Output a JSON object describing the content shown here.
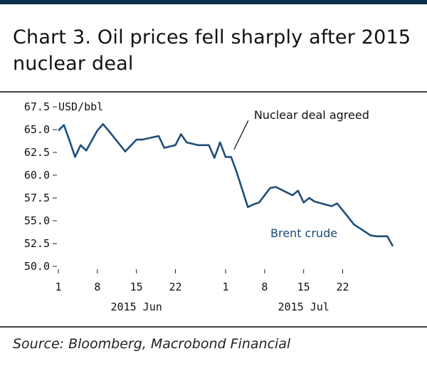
{
  "title": "Chart 3. Oil prices fell sharply after 2015 nuclear deal",
  "source": "Source: Bloomberg, Macrobond Financial",
  "colors": {
    "header_bar": "#0b2d4a",
    "series": "#1f4e79",
    "label": "#1a4a7a"
  },
  "chart_data": {
    "type": "line",
    "ylabel": "USD/bbl",
    "ylim": [
      50.0,
      67.5
    ],
    "yticks": [
      "67.5",
      "65.0",
      "62.5",
      "60.0",
      "57.5",
      "55.0",
      "52.5",
      "50.0"
    ],
    "ytick_values": [
      67.5,
      65.0,
      62.5,
      60.0,
      57.5,
      55.0,
      52.5,
      50.0
    ],
    "x_range": [
      "2015-06-01",
      "2015-07-31"
    ],
    "xticks": [
      {
        "date": "2015-06-01",
        "label": "1"
      },
      {
        "date": "2015-06-08",
        "label": "8"
      },
      {
        "date": "2015-06-15",
        "label": "15"
      },
      {
        "date": "2015-06-22",
        "label": "22"
      },
      {
        "date": "2015-07-01",
        "label": "1"
      },
      {
        "date": "2015-07-08",
        "label": "8"
      },
      {
        "date": "2015-07-15",
        "label": "15"
      },
      {
        "date": "2015-07-22",
        "label": "22"
      }
    ],
    "month_labels": [
      {
        "date": "2015-06-15",
        "label": "2015 Jun"
      },
      {
        "date": "2015-07-15",
        "label": "2015 Jul"
      }
    ],
    "series": [
      {
        "name": "Brent crude",
        "points": [
          [
            "2015-06-01",
            64.9
          ],
          [
            "2015-06-02",
            65.5
          ],
          [
            "2015-06-03",
            63.8
          ],
          [
            "2015-06-04",
            62.0
          ],
          [
            "2015-06-05",
            63.3
          ],
          [
            "2015-06-06",
            62.7
          ],
          [
            "2015-06-08",
            64.9
          ],
          [
            "2015-06-09",
            65.6
          ],
          [
            "2015-06-10",
            64.9
          ],
          [
            "2015-06-13",
            62.6
          ],
          [
            "2015-06-15",
            63.9
          ],
          [
            "2015-06-16",
            63.9
          ],
          [
            "2015-06-19",
            64.3
          ],
          [
            "2015-06-20",
            63.0
          ],
          [
            "2015-06-22",
            63.3
          ],
          [
            "2015-06-23",
            64.5
          ],
          [
            "2015-06-24",
            63.6
          ],
          [
            "2015-06-26",
            63.3
          ],
          [
            "2015-06-28",
            63.3
          ],
          [
            "2015-06-29",
            61.9
          ],
          [
            "2015-06-30",
            63.6
          ],
          [
            "2015-07-01",
            62.0
          ],
          [
            "2015-07-02",
            62.0
          ],
          [
            "2015-07-03",
            60.3
          ],
          [
            "2015-07-05",
            56.5
          ],
          [
            "2015-07-06",
            56.8
          ],
          [
            "2015-07-07",
            57.0
          ],
          [
            "2015-07-09",
            58.6
          ],
          [
            "2015-07-10",
            58.7
          ],
          [
            "2015-07-13",
            57.8
          ],
          [
            "2015-07-14",
            58.3
          ],
          [
            "2015-07-15",
            57.0
          ],
          [
            "2015-07-16",
            57.5
          ],
          [
            "2015-07-17",
            57.1
          ],
          [
            "2015-07-20",
            56.6
          ],
          [
            "2015-07-21",
            56.9
          ],
          [
            "2015-07-23",
            55.4
          ],
          [
            "2015-07-24",
            54.6
          ],
          [
            "2015-07-27",
            53.4
          ],
          [
            "2015-07-28",
            53.3
          ],
          [
            "2015-07-29",
            53.3
          ],
          [
            "2015-07-30",
            53.3
          ],
          [
            "2015-07-31",
            52.2
          ]
        ]
      }
    ],
    "annotations": [
      {
        "text": "Nuclear deal agreed",
        "date": "2015-07-02"
      }
    ]
  }
}
